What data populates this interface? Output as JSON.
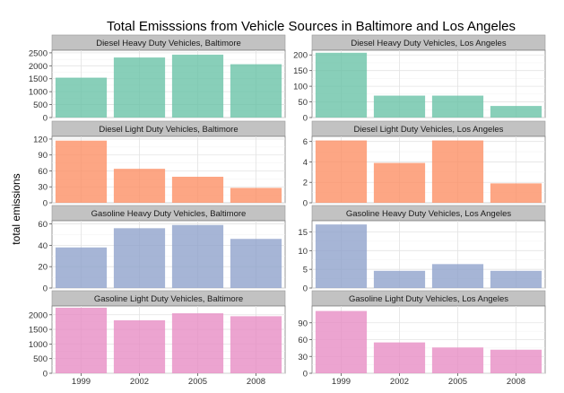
{
  "chart_data": {
    "type": "bar",
    "title": "Total Emisssions from Vehicle Sources in Baltimore and Los Angeles",
    "ylabel": "total emissions",
    "xlabel": "",
    "categories": [
      "1999",
      "2002",
      "2005",
      "2008"
    ],
    "grid": true,
    "panels": [
      {
        "name": "Diesel Heavy Duty Vehicles, Baltimore",
        "color": "#66C2A5",
        "ylim": [
          0,
          2600
        ],
        "ticks": [
          0,
          500,
          1000,
          1500,
          2000,
          2500
        ],
        "tick_labels": [
          "0",
          "500",
          "1000",
          "1500",
          "2000",
          "2500"
        ],
        "values": [
          1540,
          2320,
          2430,
          2060
        ]
      },
      {
        "name": "Diesel Heavy Duty Vehicles, Los Angeles",
        "color": "#66C2A5",
        "ylim": [
          0,
          215
        ],
        "ticks": [
          0,
          50,
          100,
          150,
          200
        ],
        "tick_labels": [
          "0",
          "50",
          "100",
          "150",
          "200"
        ],
        "values": [
          207,
          70,
          70,
          37
        ]
      },
      {
        "name": "Diesel Light Duty Vehicles, Baltimore",
        "color": "#FC8D62",
        "ylim": [
          0,
          125
        ],
        "ticks": [
          0,
          30,
          60,
          90,
          120
        ],
        "tick_labels": [
          "0",
          "30",
          "60",
          "90",
          "120"
        ],
        "values": [
          117,
          64,
          49,
          28
        ]
      },
      {
        "name": "Diesel Light Duty Vehicles, Los Angeles",
        "color": "#FC8D62",
        "ylim": [
          0,
          6.5
        ],
        "ticks": [
          0,
          2,
          4,
          6
        ],
        "tick_labels": [
          "0",
          "2",
          "4",
          "6"
        ],
        "values": [
          6.1,
          3.9,
          6.1,
          1.9
        ]
      },
      {
        "name": "Gasoline Heavy Duty Vehicles, Baltimore",
        "color": "#8DA0CB",
        "ylim": [
          0,
          63
        ],
        "ticks": [
          0,
          20,
          40,
          60
        ],
        "tick_labels": [
          "0",
          "20",
          "40",
          "60"
        ],
        "values": [
          38,
          56,
          59,
          46
        ]
      },
      {
        "name": "Gasoline Heavy Duty Vehicles, Los Angeles",
        "color": "#8DA0CB",
        "ylim": [
          0,
          18
        ],
        "ticks": [
          0,
          5,
          10,
          15
        ],
        "tick_labels": [
          "0",
          "5",
          "10",
          "15"
        ],
        "values": [
          17,
          4.6,
          6.4,
          4.6
        ]
      },
      {
        "name": "Gasoline Light Duty Vehicles, Baltimore",
        "color": "#E78AC3",
        "ylim": [
          0,
          2300
        ],
        "ticks": [
          0,
          500,
          1000,
          1500,
          2000
        ],
        "tick_labels": [
          "0",
          "500",
          "1000",
          "1500",
          "2000"
        ],
        "values": [
          2240,
          1810,
          2050,
          1950
        ]
      },
      {
        "name": "Gasoline Light Duty Vehicles, Los Angeles",
        "color": "#E78AC3",
        "ylim": [
          0,
          120
        ],
        "ticks": [
          0,
          30,
          60,
          90
        ],
        "tick_labels": [
          "0",
          "30",
          "60",
          "90"
        ],
        "values": [
          111,
          55,
          46,
          42
        ]
      }
    ]
  }
}
